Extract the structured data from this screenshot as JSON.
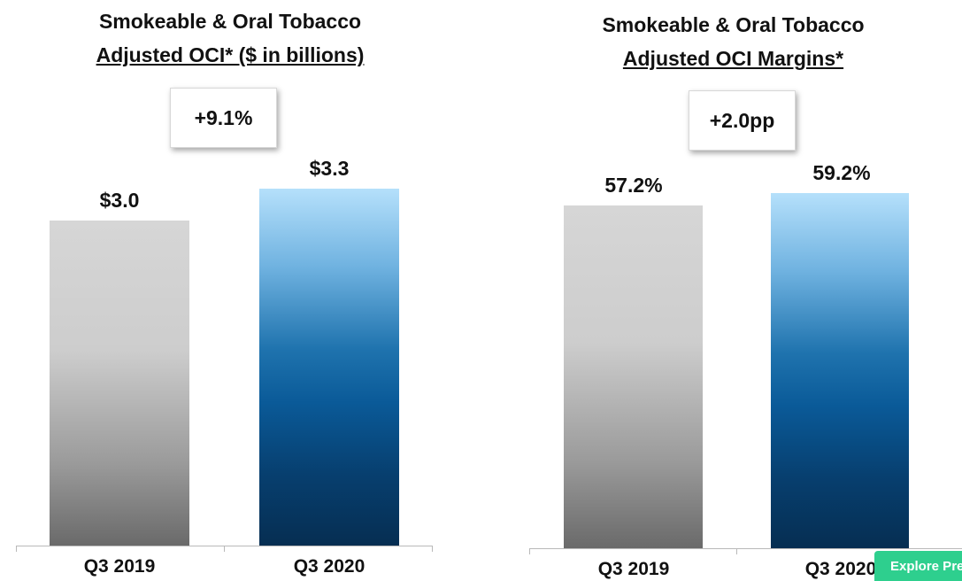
{
  "chart_data": [
    {
      "type": "bar",
      "title": "Smokeable & Oral Tobacco",
      "subtitle": "Adjusted OCI* ($ in billions)",
      "change_label": "+9.1%",
      "categories": [
        "Q3 2019",
        "Q3 2020"
      ],
      "values": [
        3.0,
        3.3
      ],
      "value_labels": [
        "$3.0",
        "$3.3"
      ],
      "ylim": [
        0,
        3.6
      ],
      "colors": [
        "#cfcfcf",
        "#0b5e9c"
      ]
    },
    {
      "type": "bar",
      "title": "Smokeable & Oral Tobacco",
      "subtitle": "Adjusted OCI Margins*",
      "change_label": "+2.0pp",
      "categories": [
        "Q3 2019",
        "Q3 2020"
      ],
      "values": [
        57.2,
        59.2
      ],
      "value_labels": [
        "57.2%",
        "59.2%"
      ],
      "ylim": [
        0,
        63.5
      ],
      "colors": [
        "#cfcfcf",
        "#0b5e9c"
      ]
    }
  ],
  "overlay": {
    "explore_label": "Explore Premium"
  }
}
